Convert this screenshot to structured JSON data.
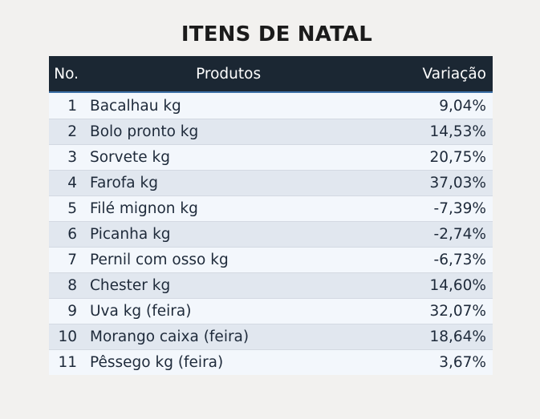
{
  "chart_data": {
    "type": "table",
    "title": "ITENS DE NATAL",
    "columns": [
      "No.",
      "Produtos",
      "Variação"
    ],
    "rows": [
      {
        "no": "1",
        "produto": "Bacalhau kg",
        "variacao": "9,04%"
      },
      {
        "no": "2",
        "produto": "Bolo pronto kg",
        "variacao": "14,53%"
      },
      {
        "no": "3",
        "produto": "Sorvete kg",
        "variacao": "20,75%"
      },
      {
        "no": "4",
        "produto": "Farofa kg",
        "variacao": "37,03%"
      },
      {
        "no": "5",
        "produto": "Filé mignon kg",
        "variacao": "-7,39%"
      },
      {
        "no": "6",
        "produto": "Picanha kg",
        "variacao": "-2,74%"
      },
      {
        "no": "7",
        "produto": "Pernil com osso kg",
        "variacao": "-6,73%"
      },
      {
        "no": "8",
        "produto": "Chester kg",
        "variacao": "14,60%"
      },
      {
        "no": "9",
        "produto": "Uva kg (feira)",
        "variacao": "32,07%"
      },
      {
        "no": "10",
        "produto": "Morango caixa (feira)",
        "variacao": "18,64%"
      },
      {
        "no": "11",
        "produto": "Pêssego kg (feira)",
        "variacao": "3,67%"
      }
    ],
    "colors": {
      "header": "#1b2733",
      "row_light": "#f3f7fc",
      "row_dark": "#e1e7ef",
      "background": "#f2f1ef"
    }
  }
}
